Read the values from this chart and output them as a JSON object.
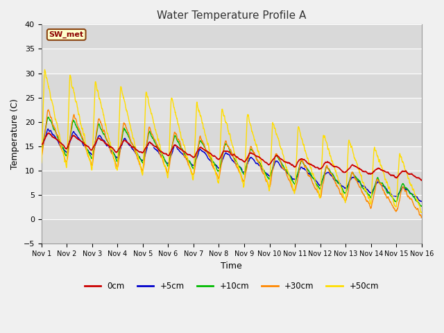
{
  "title": "Water Temperature Profile A",
  "xlabel": "Time",
  "ylabel": "Temperature (C)",
  "ylim": [
    -5,
    40
  ],
  "xlim": [
    0,
    15
  ],
  "fig_bg_color": "#f0f0f0",
  "plot_bg_color": "#e8e8e8",
  "plot_bg_color2": "#d4d4d4",
  "x_tick_labels": [
    "Nov 1",
    "Nov 2",
    "Nov 3",
    "Nov 4",
    "Nov 5",
    "Nov 6",
    "Nov 7",
    "Nov 8",
    "Nov 9",
    "Nov 10",
    "Nov 11",
    "Nov 12",
    "Nov 13",
    "Nov 14",
    "Nov 15",
    "Nov 16"
  ],
  "x_tick_positions": [
    0,
    1,
    2,
    3,
    4,
    5,
    6,
    7,
    8,
    9,
    10,
    11,
    12,
    13,
    14,
    15
  ],
  "colors": {
    "0cm": "#cc0000",
    "+5cm": "#0000cc",
    "+10cm": "#00bb00",
    "+30cm": "#ff8800",
    "+50cm": "#ffdd00"
  },
  "label_box": "SW_met",
  "legend_labels": [
    "0cm",
    "+5cm",
    "+10cm",
    "+30cm",
    "+50cm"
  ]
}
